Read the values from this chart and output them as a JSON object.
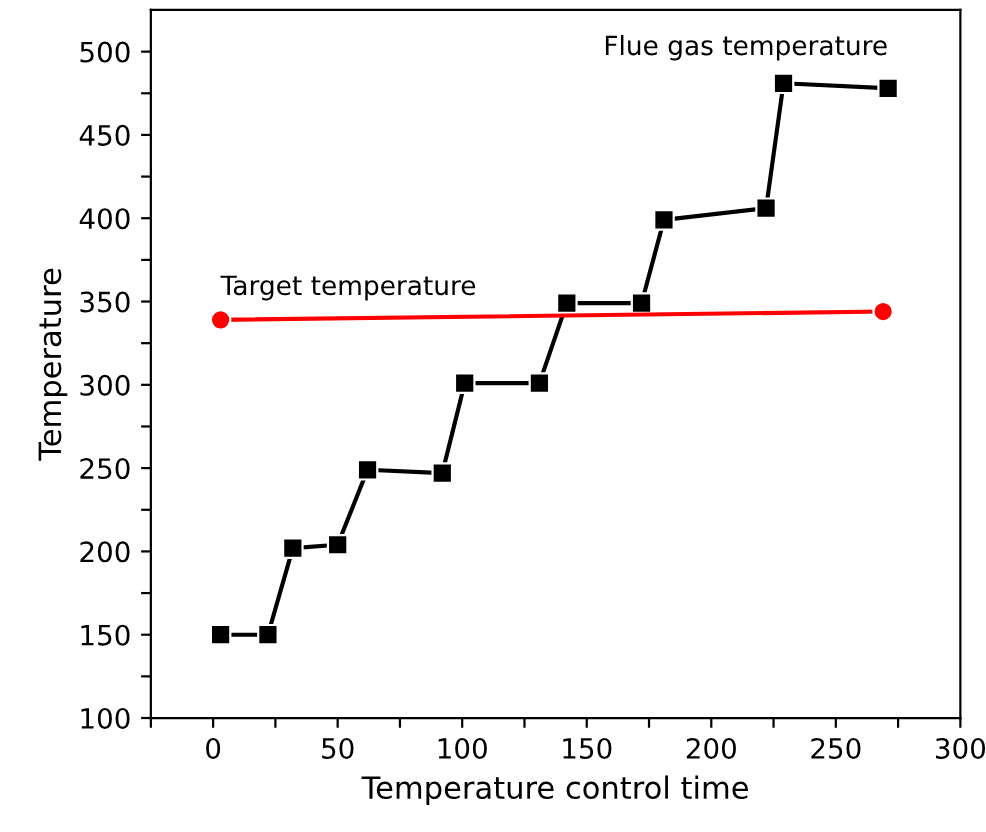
{
  "chart_data": {
    "type": "line",
    "xlabel": "Temperature control time",
    "ylabel": "Temperature",
    "xlim": [
      -25,
      300
    ],
    "ylim": [
      100,
      525
    ],
    "xticks": [
      {
        "value": -25,
        "label": null
      },
      0,
      {
        "value": 25,
        "label": null
      },
      50,
      {
        "value": 75,
        "label": null
      },
      100,
      {
        "value": 125,
        "label": null
      },
      150,
      {
        "value": 175,
        "label": null
      },
      200,
      {
        "value": 225,
        "label": null
      },
      250,
      {
        "value": 275,
        "label": null
      },
      300
    ],
    "yticks": [
      100,
      {
        "value": 125,
        "label": null
      },
      150,
      {
        "value": 175,
        "label": null
      },
      200,
      {
        "value": 225,
        "label": null
      },
      250,
      {
        "value": 275,
        "label": null
      },
      300,
      {
        "value": 325,
        "label": null
      },
      350,
      {
        "value": 375,
        "label": null
      },
      400,
      {
        "value": 425,
        "label": null
      },
      450,
      {
        "value": 475,
        "label": null
      },
      500
    ],
    "grid": false,
    "legend": false,
    "series": [
      {
        "name": "Flue gas temperature",
        "color": "#000000",
        "marker": "square",
        "x": [
          3,
          22,
          32,
          50,
          62,
          92,
          101,
          131,
          142,
          172,
          181,
          222,
          229,
          271
        ],
        "values": [
          150,
          150,
          202,
          204,
          249,
          247,
          301,
          301,
          349,
          349,
          399,
          406,
          481,
          478
        ]
      },
      {
        "name": "Target temperature",
        "color": "#ff0000",
        "marker": "circle",
        "x": [
          3,
          269
        ],
        "values": [
          339,
          344
        ]
      }
    ]
  }
}
